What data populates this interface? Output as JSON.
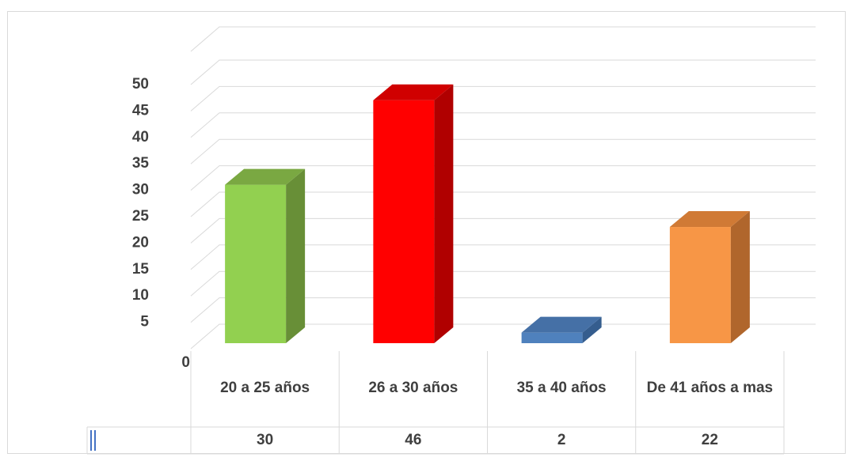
{
  "chart_data": {
    "type": "bar",
    "categories": [
      "20 a 25 años",
      "26 a 30 años",
      "35 a 40 años",
      "De 41 años a mas"
    ],
    "values": [
      30,
      46,
      2,
      22
    ],
    "colors": [
      "#92d050",
      "#ff0000",
      "#4f81bd",
      "#f79646"
    ],
    "side_colors": [
      "#688f37",
      "#b00000",
      "#355d8e",
      "#b0662c"
    ],
    "top_colors": [
      "#7aa842",
      "#d00000",
      "#4570a6",
      "#d07a35"
    ],
    "y_ticks": [
      "0",
      "5",
      "10",
      "15",
      "20",
      "25",
      "30",
      "35",
      "40",
      "45",
      "50"
    ],
    "ylim": [
      0,
      50
    ],
    "grid": true,
    "data_table": true,
    "title": "",
    "xlabel": "",
    "ylabel": ""
  }
}
